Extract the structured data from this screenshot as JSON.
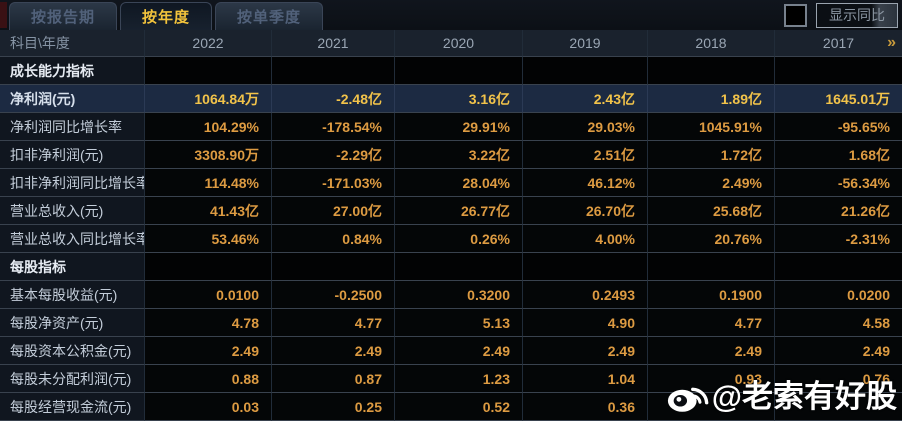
{
  "tabs": [
    {
      "id": "tab-report-period",
      "label": "按报告期",
      "active": false
    },
    {
      "id": "tab-annual",
      "label": "按年度",
      "active": true
    },
    {
      "id": "tab-quarterly",
      "label": "按单季度",
      "active": false
    }
  ],
  "controls": {
    "show_yoy_label": "显示同比",
    "checkbox_checked": false
  },
  "table": {
    "corner_label": "科目\\年度",
    "years": [
      "2022",
      "2021",
      "2020",
      "2019",
      "2018",
      "2017"
    ],
    "more_icon": "»",
    "rows": [
      {
        "type": "section",
        "label": "成长能力指标",
        "values": [
          "",
          "",
          "",
          "",
          "",
          ""
        ]
      },
      {
        "type": "highlight",
        "label": "净利润(元)",
        "values": [
          "1064.84万",
          "-2.48亿",
          "3.16亿",
          "2.43亿",
          "1.89亿",
          "1645.01万"
        ]
      },
      {
        "type": "data",
        "label": "净利润同比增长率",
        "values": [
          "104.29%",
          "-178.54%",
          "29.91%",
          "29.03%",
          "1045.91%",
          "-95.65%"
        ]
      },
      {
        "type": "data",
        "label": "扣非净利润(元)",
        "values": [
          "3308.90万",
          "-2.29亿",
          "3.22亿",
          "2.51亿",
          "1.72亿",
          "1.68亿"
        ]
      },
      {
        "type": "data",
        "label": "扣非净利润同比增长率",
        "values": [
          "114.48%",
          "-171.03%",
          "28.04%",
          "46.12%",
          "2.49%",
          "-56.34%"
        ]
      },
      {
        "type": "data",
        "label": "营业总收入(元)",
        "values": [
          "41.43亿",
          "27.00亿",
          "26.77亿",
          "26.70亿",
          "25.68亿",
          "21.26亿"
        ]
      },
      {
        "type": "data",
        "label": "营业总收入同比增长率",
        "values": [
          "53.46%",
          "0.84%",
          "0.26%",
          "4.00%",
          "20.76%",
          "-2.31%"
        ]
      },
      {
        "type": "section",
        "label": "每股指标",
        "values": [
          "",
          "",
          "",
          "",
          "",
          ""
        ]
      },
      {
        "type": "data",
        "label": "基本每股收益(元)",
        "values": [
          "0.0100",
          "-0.2500",
          "0.3200",
          "0.2493",
          "0.1900",
          "0.0200"
        ]
      },
      {
        "type": "data",
        "label": "每股净资产(元)",
        "values": [
          "4.78",
          "4.77",
          "5.13",
          "4.90",
          "4.77",
          "4.58"
        ]
      },
      {
        "type": "data",
        "label": "每股资本公积金(元)",
        "values": [
          "2.49",
          "2.49",
          "2.49",
          "2.49",
          "2.49",
          "2.49"
        ]
      },
      {
        "type": "data",
        "label": "每股未分配利润(元)",
        "values": [
          "0.88",
          "0.87",
          "1.23",
          "1.04",
          "0.93",
          "0.76"
        ]
      },
      {
        "type": "data",
        "label": "每股经营现金流(元)",
        "values": [
          "0.03",
          "0.25",
          "0.52",
          "0.36",
          "",
          ""
        ]
      }
    ]
  },
  "watermark": {
    "icon": "weibo-icon",
    "text": "@老索有好股"
  },
  "colors": {
    "accent_gold": "#f2c33c",
    "value_orange": "#dd9b42",
    "highlight_row_bg": "#1c2a42",
    "label_column_bg": "#10161f",
    "header_row_bg": "#1a222d"
  }
}
